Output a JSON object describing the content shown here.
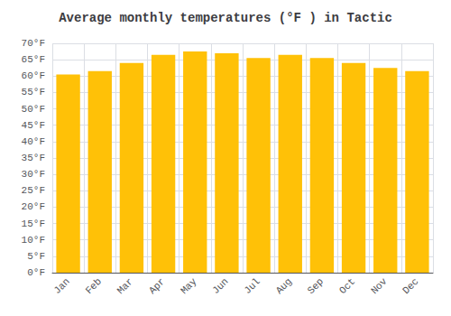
{
  "chart_data": {
    "type": "bar",
    "title": "Average monthly temperatures (°F ) in Tactic",
    "categories": [
      "Jan",
      "Feb",
      "Mar",
      "Apr",
      "May",
      "Jun",
      "Jul",
      "Aug",
      "Sep",
      "Oct",
      "Nov",
      "Dec"
    ],
    "values": [
      60.5,
      61.5,
      64.0,
      66.5,
      67.5,
      67.0,
      65.5,
      66.5,
      65.5,
      64.0,
      62.5,
      61.5
    ],
    "color": "#FFC107",
    "ylim": [
      0,
      70
    ],
    "yticks": [
      {
        "value": 0,
        "label": "0°F"
      },
      {
        "value": 5,
        "label": "5°F"
      },
      {
        "value": 10,
        "label": "10°F"
      },
      {
        "value": 15,
        "label": "15°F"
      },
      {
        "value": 20,
        "label": "20°F"
      },
      {
        "value": 25,
        "label": "25°F"
      },
      {
        "value": 30,
        "label": "30°F"
      },
      {
        "value": 35,
        "label": "35°F"
      },
      {
        "value": 40,
        "label": "40°F"
      },
      {
        "value": 45,
        "label": "45°F"
      },
      {
        "value": 50,
        "label": "50°F"
      },
      {
        "value": 55,
        "label": "55°F"
      },
      {
        "value": 60,
        "label": "60°F"
      },
      {
        "value": 65,
        "label": "65°F"
      },
      {
        "value": 70,
        "label": "70°F"
      }
    ],
    "grid": true
  }
}
